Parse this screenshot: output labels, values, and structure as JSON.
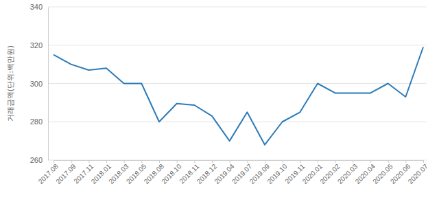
{
  "chart_data": {
    "type": "line",
    "y_label": "거래금액(단위:백만원)",
    "categories": [
      "2017.08",
      "2017.09",
      "2017.11",
      "2018.01",
      "2018.03",
      "2018.05",
      "2018.08",
      "2018.10",
      "2018.11",
      "2018.12",
      "2019.04",
      "2019.07",
      "2019.09",
      "2019.10",
      "2019.11",
      "2020.01",
      "2020.02",
      "2020.03",
      "2020.04",
      "2020.05",
      "2020.06",
      "2020.07"
    ],
    "values": [
      315,
      310,
      307,
      308,
      300,
      300,
      280,
      289.5,
      288.7,
      283,
      270,
      285,
      268,
      280,
      285,
      300,
      295,
      295,
      295,
      300,
      293,
      319
    ],
    "color": "#2b7bb9",
    "ylim": [
      260,
      340
    ],
    "yticks": [
      260,
      280,
      300,
      320,
      340
    ],
    "grid": true
  }
}
